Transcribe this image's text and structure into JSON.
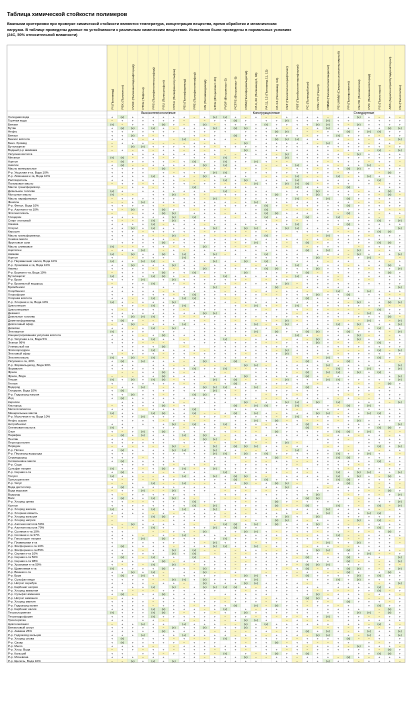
{
  "title": "Таблица химической стойкости полимеров",
  "intro": [
    "Важными критериями при проверке химической стойкости являются температура, концентрация вещества, время обработки и механическая",
    "нагрузка. В таблице приведены данные по устойчивости к различным химическим веществам. Испытания были проведены в нормальных условиях",
    "(24С, 50% относительной влажности)"
  ],
  "groups": [
    "Высокотехнологичные",
    "Конструкционные",
    "Стандартные"
  ],
  "polymers": [
    "PI (Полиимид)",
    "PEK (Поликетон)",
    "PVDF (Поливинилиденфторид)",
    "PTFE (Тефлон)",
    "PPS (Полифениленсульфид)",
    "PSU (Полисульфон)",
    "PPSU (Полифенилсульфон)",
    "PEI (Полиэфиримид)",
    "PPE (Полифениленэфир)",
    "PAI (Полиамидимид)",
    "ETFE (Фторопласт-40)",
    "PVDF (Фторопласт-2)",
    "PCTFE (Фторопласт-3)",
    "POM (Полиформальдегид)",
    "PA 6, 66 (Полиамид 6, 66)",
    "PA 11, 12 (Полиамид 11, 12)",
    "PA 4.6 (Полиамид 4.6)",
    "PET (Полиэтилентерефталат)",
    "PBT (Полибутилентерефталат)",
    "PC (Поликарбонат)",
    "PPE / PS (Норил)",
    "PMMA (Полиметилметакрилат)",
    "PE-UHMW (Сверхвысокомолекулярный)",
    "PP (Полипропилен)",
    "PE-HD (Полиэтилен)",
    "PVC (Поливинилхлорид)",
    "PS (Полистирол)",
    "ABS (Акрилонитрилбутадиенстирол)",
    "PE (Полиэтилен)"
  ],
  "chemicals": [
    "Холодная вода",
    "Горячая вода",
    "Бензин",
    "Бутан",
    "Нефть",
    "Бензол",
    "Бензол кислота",
    "Бенз. бромид",
    "Бутилацетат",
    "Водный р-р аммиака",
    "Уксусная кислота",
    "Метанол",
    "Ацетон",
    "Анилин",
    "Масло минеральное",
    "Р-р. Уксусная к-та, Вода 10%",
    "Р-р. Лимонная к-та, Вода 10%",
    "Растворитель",
    "Пальмовое масло",
    "Масло трансформатор.",
    "Дизельное топливо",
    "Моторное масло",
    "Масло парафиновое",
    "Фенолы",
    "Р-р. Фенол, Вода 10%",
    "Р-р. Азотная к-та 10%",
    "Этиленгликоль",
    "Глицерин",
    "Спирт этиловый",
    "Смазка",
    "Стирол",
    "Керосин",
    "Масло трансформатор.",
    "Соевое масло",
    "Фруктовые соки",
    "Масло оливковое",
    "Ацетилен",
    "Аммиак",
    "Ацетон",
    "Р-р. Перманганат калия, Вода 10%",
    "Р-р. Хромовая к-та, Вода 10%",
    "Амины",
    "Р-р. Борная к-та, Вода 10%",
    "Бутилацетат",
    "Р-р. Бром",
    "Р-р. Бромистый водород",
    "Бромбензол",
    "Хлорбензол",
    "Хлороформ",
    "Хлорная кислота",
    "Р-р. Хлорная к-та, Вода 10%",
    "Циклогексан",
    "Циклогексанон",
    "Деканол",
    "Дизельное топливо",
    "Диметилформамид",
    "Диэтиловый эфир",
    "Диоксан",
    "Этилацетат",
    "Концентрированная уксусная кислота",
    "Р-р. Уксусная к-та, Вода 5%",
    "Этанол 96%",
    "Углекислый газ",
    "Эпихлоргидрин",
    "Этиловый эфир",
    "Этиленгликоль",
    "Уксусная к-та, 40%",
    "Р-р. Формальдегид, Вода 30%",
    "Формалин",
    "Фреон",
    "Фреон, Вода",
    "Гексан",
    "Гептан",
    "Водород",
    "Глицерин, Вода 10%",
    "Р-р. Гидроксид натрия",
    "Йод",
    "Керосин",
    "Кислород",
    "Метилэтилкетон",
    "Минеральные масла",
    "Р-р. Молочная к-та, Вода 10%",
    "Нефть сырая",
    "Нитробензол",
    "Олеиновая кислота",
    "Озон",
    "Парафин",
    "Пентан",
    "Перхлорэтилен",
    "Пиридин",
    "Р-р. Поташ",
    "Р-р. Пероксид водорода",
    "Сероводород",
    "Силиконовое масло",
    "Р-р. Сода",
    "Сульфат натрия",
    "Р-р. Серная к-та",
    "Толуол",
    "Трихлорэтилен",
    "Р-р. Уксус",
    "Вода дистиллир.",
    "Вода морская",
    "Водород",
    "Воск",
    "Р-р. Хлорид цинка",
    "Ксилол",
    "Р-р. Хлорид железа",
    "Р-р. Хлорная известь",
    "Р-р. Хлорид кальция",
    "Р-р. Хлорид натрия",
    "Р-р. Азотная кислота 50%",
    "Р-р. Азотная кислота 70%",
    "Р-р. Соляная к-та 10%",
    "Р-р. Соляная к-та 37%",
    "Р-р. Гипохлорит натрия",
    "Р-р. Плавиковая к-та",
    "Р-р. Фосфорная к-та 10%",
    "Р-р. Фосфорная к-та 85%",
    "Р-р. Серная к-та 10%",
    "Р-р. Серная к-та 50%",
    "Р-р. Серная к-та 98%",
    "Р-р. Хромовая к-та 50%",
    "Р-р. Щавелевая к-та",
    "Р-р. Винная к-та",
    "Р-р. Бура",
    "Р-р. Сульфат меди",
    "Р-р. Нитрат серебра",
    "Р-р. Карбонат натрия",
    "Р-р. Хлорид аммония",
    "Р-р. Сульфат аммония",
    "Р-р. Нитрат аммония",
    "Р-р. Хлорид магния",
    "Р-р. Гидроксид калия",
    "Р-р. Карбонат калия",
    "Тетрахлорметан",
    "Тетрагидрофуран",
    "Трихлорэтан",
    "Циклогексанол",
    "Бензиловый спирт",
    "Р-р. Аммиак 25%",
    "Р-р. Гидроксид кальция",
    "Р-р. Хлорид олова",
    "Р-р. Сахар",
    "Р-р. Мыло",
    "Р-р. Хлор, Вода",
    "Р-р. Кальций",
    "Р-р. Мочевина",
    "Р-р. Щелочь, Вода 10%"
  ],
  "symbols": {
    "resistant": "+",
    "limited": "(+)",
    "not_resistant": "−",
    "not_tested": ""
  },
  "colors": {
    "header_yellow": "#fdf7c4",
    "cell_yellow": "#fbf6c2",
    "cell_green": "#e3f2d6",
    "grid": "#9a9a9a",
    "grid_light": "#c9c9c9"
  }
}
